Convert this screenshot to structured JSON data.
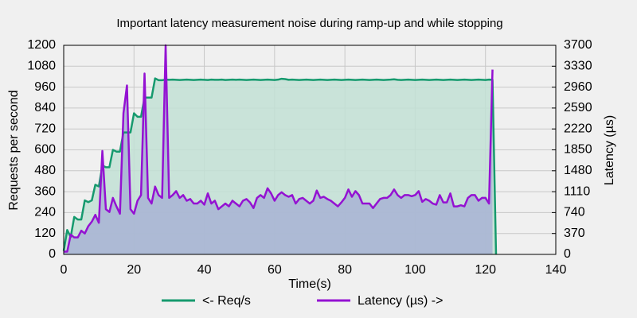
{
  "chart_data": {
    "type": "line",
    "title": "Important latency measurement noise during ramp-up and while stopping",
    "x_label": "Time(s)",
    "y_label": "Requests per second",
    "y2_label": "Latency (µs)",
    "x": [
      0,
      1,
      2,
      3,
      4,
      5,
      6,
      7,
      8,
      9,
      10,
      11,
      12,
      13,
      14,
      15,
      16,
      17,
      18,
      19,
      20,
      21,
      22,
      23,
      24,
      25,
      26,
      27,
      28,
      29,
      30,
      31,
      32,
      33,
      34,
      35,
      36,
      37,
      38,
      39,
      40,
      41,
      42,
      43,
      44,
      45,
      46,
      47,
      48,
      49,
      50,
      51,
      52,
      53,
      54,
      55,
      56,
      57,
      58,
      59,
      60,
      61,
      62,
      63,
      64,
      65,
      66,
      67,
      68,
      69,
      70,
      71,
      72,
      73,
      74,
      75,
      76,
      77,
      78,
      79,
      80,
      81,
      82,
      83,
      84,
      85,
      86,
      87,
      88,
      89,
      90,
      91,
      92,
      93,
      94,
      95,
      96,
      97,
      98,
      99,
      100,
      101,
      102,
      103,
      104,
      105,
      106,
      107,
      108,
      109,
      110,
      111,
      112,
      113,
      114,
      115,
      116,
      117,
      118,
      119,
      120,
      121,
      122,
      123
    ],
    "series": [
      {
        "name": "<- Req/s",
        "color": "#169a6e",
        "fill": "#c2e1d5",
        "values": [
          20,
          140,
          100,
          215,
          200,
          200,
          310,
          300,
          310,
          400,
          390,
          510,
          500,
          500,
          600,
          590,
          590,
          700,
          700,
          700,
          810,
          790,
          790,
          900,
          900,
          900,
          1010,
          1000,
          1000,
          1003,
          1002,
          1003,
          1002,
          1001,
          1002,
          1003,
          1002,
          1001,
          1002,
          1003,
          1002,
          1001,
          1003,
          1002,
          1002,
          1003,
          1001,
          1002,
          1003,
          1002,
          1003,
          1002,
          1001,
          1002,
          1003,
          1002,
          1001,
          1002,
          1003,
          1002,
          1001,
          1003,
          1008,
          1006,
          1002,
          1003,
          1002,
          1001,
          1002,
          1003,
          1002,
          1001,
          1002,
          1003,
          1002,
          1001,
          1002,
          1003,
          1002,
          1001,
          1002,
          1003,
          1002,
          1001,
          1002,
          1003,
          1002,
          1001,
          1002,
          1003,
          1002,
          1001,
          1002,
          1003,
          1005,
          1002,
          1001,
          1002,
          1003,
          1002,
          1001,
          1002,
          1003,
          1002,
          1001,
          1002,
          1003,
          1002,
          1001,
          1002,
          1003,
          1002,
          1001,
          1002,
          1003,
          1002,
          1001,
          1002,
          1003,
          1002,
          1001,
          1003,
          1002,
          0
        ]
      },
      {
        "name": "Latency (µs) ->",
        "color": "#9412d2",
        "fill": "#a8b3d3",
        "axis": "y2",
        "values": [
          50,
          50,
          350,
          300,
          300,
          420,
          370,
          500,
          580,
          700,
          560,
          1830,
          800,
          750,
          1000,
          850,
          720,
          2500,
          2990,
          800,
          720,
          950,
          1050,
          3200,
          1000,
          900,
          1200,
          1050,
          1000,
          3700,
          1000,
          1050,
          1120,
          1000,
          1050,
          950,
          980,
          900,
          900,
          950,
          880,
          1080,
          900,
          950,
          800,
          850,
          900,
          850,
          950,
          900,
          850,
          950,
          980,
          920,
          820,
          1000,
          1050,
          1000,
          1170,
          1080,
          950,
          1050,
          1100,
          1050,
          1020,
          1050,
          900,
          980,
          1000,
          950,
          900,
          950,
          1130,
          1000,
          1020,
          980,
          950,
          900,
          850,
          920,
          1000,
          1150,
          1020,
          1120,
          1050,
          900,
          900,
          900,
          820,
          900,
          980,
          1000,
          1000,
          1050,
          1150,
          1050,
          1000,
          1050,
          1050,
          1030,
          1050,
          1120,
          930,
          980,
          950,
          900,
          880,
          1050,
          920,
          920,
          1080,
          850,
          850,
          870,
          850,
          1000,
          1050,
          1050,
          950,
          1000,
          1000,
          900,
          3270,
          null
        ]
      }
    ],
    "xlim": [
      0,
      140
    ],
    "xticks": [
      0,
      20,
      40,
      60,
      80,
      100,
      120,
      140
    ],
    "ylim": [
      0,
      1200
    ],
    "yticks": [
      0,
      120,
      240,
      360,
      480,
      600,
      720,
      840,
      960,
      1080,
      1200
    ],
    "y2lim": [
      0,
      3700
    ],
    "y2ticks": [
      0,
      370,
      740,
      1110,
      1480,
      1850,
      2220,
      2590,
      2960,
      3330,
      3700
    ],
    "grid": true,
    "legend": "bottom"
  }
}
